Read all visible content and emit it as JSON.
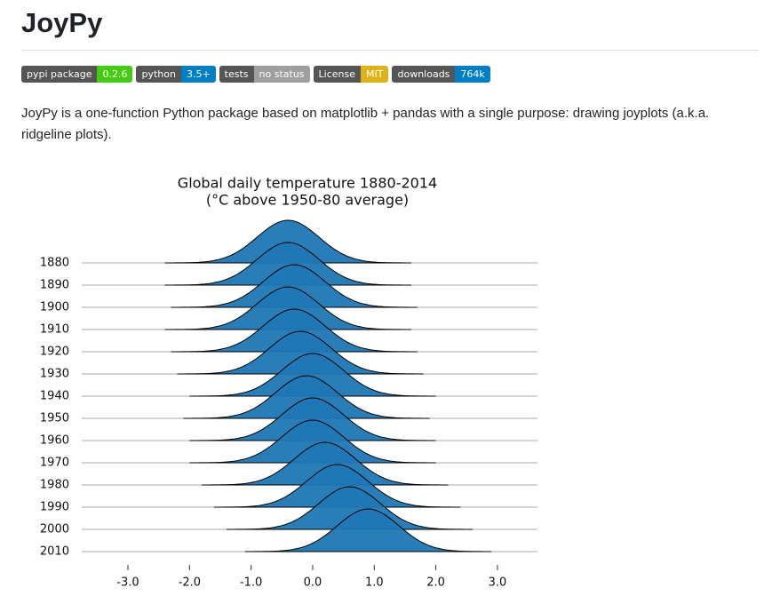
{
  "header": {
    "title": "JoyPy"
  },
  "badges": [
    {
      "label": "pypi package",
      "value": "0.2.6",
      "color": "#4c1"
    },
    {
      "label": "python",
      "value": "3.5+",
      "color": "#007ec6"
    },
    {
      "label": "tests",
      "value": "no status",
      "color": "#9f9f9f"
    },
    {
      "label": "License",
      "value": "MIT",
      "color": "#dfb317"
    },
    {
      "label": "downloads",
      "value": "764k",
      "color": "#007ec6"
    }
  ],
  "description": "JoyPy is a one-function Python package based on matplotlib + pandas with a single purpose: drawing joyplots (a.k.a. ridgeline plots).",
  "chart_data": {
    "type": "ridgeline",
    "title": "Global daily temperature 1880-2014",
    "subtitle": "(°C above 1950-80 average)",
    "categories": [
      "1880",
      "1890",
      "1900",
      "1910",
      "1920",
      "1930",
      "1940",
      "1950",
      "1960",
      "1970",
      "1980",
      "1990",
      "2000",
      "2010"
    ],
    "means": [
      -0.4,
      -0.4,
      -0.3,
      -0.4,
      -0.3,
      -0.2,
      0.0,
      -0.1,
      0.0,
      0.0,
      0.2,
      0.4,
      0.6,
      0.9
    ],
    "spreads": [
      0.5,
      0.5,
      0.5,
      0.5,
      0.5,
      0.5,
      0.5,
      0.5,
      0.5,
      0.5,
      0.5,
      0.5,
      0.5,
      0.5
    ],
    "color": "#1f77b4",
    "xlim": [
      -3.75,
      3.65
    ],
    "xticks": [
      {
        "value": -3,
        "label": "-3.0"
      },
      {
        "value": -2,
        "label": "-2.0"
      },
      {
        "value": -1,
        "label": "-1.0"
      },
      {
        "value": 0,
        "label": "0.0"
      },
      {
        "value": 1,
        "label": "1.0"
      },
      {
        "value": 2,
        "label": "2.0"
      },
      {
        "value": 3,
        "label": "3.0"
      }
    ],
    "grid": true
  }
}
